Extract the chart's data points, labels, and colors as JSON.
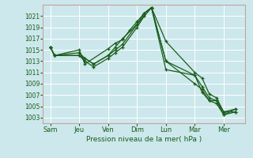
{
  "title": "",
  "xlabel": "Pression niveau de la mer( hPa )",
  "ylabel": "",
  "background_color": "#cce8ec",
  "grid_color": "#b0d4da",
  "line_color": "#1a5c1a",
  "marker_color": "#1a5c1a",
  "ylim": [
    1002,
    1023
  ],
  "yticks": [
    1003,
    1005,
    1007,
    1009,
    1011,
    1013,
    1015,
    1017,
    1019,
    1021
  ],
  "xtick_labels": [
    "Sam",
    "Jeu",
    "Ven",
    "Dim",
    "Lun",
    "Mar",
    "Mer"
  ],
  "xtick_positions": [
    0,
    2,
    4,
    6,
    8,
    10,
    12
  ],
  "lines": [
    {
      "x": [
        0,
        0.3,
        2,
        2.4,
        4,
        4.5,
        5,
        5.5,
        6,
        6.5,
        7.0,
        8,
        10,
        10.5,
        11,
        11.5,
        12,
        12.8
      ],
      "y": [
        1015.5,
        1014.0,
        1015.0,
        1012.5,
        1015.2,
        1016.2,
        1016.8,
        1018.5,
        1020.0,
        1021.5,
        1022.5,
        1016.5,
        1011.0,
        1010.0,
        1007.2,
        1006.5,
        1004.0,
        1004.0
      ]
    },
    {
      "x": [
        0,
        0.3,
        2,
        2.4,
        3.0,
        4,
        4.5,
        5,
        6,
        6.5,
        7.0,
        8,
        10,
        10.5,
        11,
        11.5,
        12,
        12.8
      ],
      "y": [
        1015.5,
        1014.0,
        1014.0,
        1013.0,
        1012.0,
        1013.5,
        1014.5,
        1015.5,
        1019.0,
        1021.0,
        1022.5,
        1013.0,
        1009.0,
        1008.0,
        1006.0,
        1006.0,
        1003.5,
        1004.0
      ]
    },
    {
      "x": [
        0,
        0.3,
        2,
        2.4,
        3.0,
        4,
        4.5,
        5,
        6,
        6.5,
        7.0,
        8,
        10,
        10.5,
        11,
        11.5,
        12,
        12.8
      ],
      "y": [
        1015.5,
        1014.0,
        1014.0,
        1013.5,
        1012.5,
        1014.0,
        1015.0,
        1016.0,
        1019.5,
        1021.0,
        1022.5,
        1011.5,
        1010.5,
        1007.5,
        1006.0,
        1005.5,
        1003.5,
        1004.5
      ]
    },
    {
      "x": [
        0,
        0.3,
        2,
        2.4,
        3.0,
        4,
        4.5,
        5,
        6,
        6.5,
        7.0,
        8,
        10,
        10.5,
        11,
        11.5,
        12,
        12.8
      ],
      "y": [
        1015.5,
        1014.0,
        1014.5,
        1013.5,
        1012.5,
        1014.0,
        1015.5,
        1017.0,
        1019.5,
        1021.5,
        1022.5,
        1013.0,
        1010.5,
        1008.5,
        1006.5,
        1006.0,
        1004.0,
        1004.5
      ]
    }
  ]
}
